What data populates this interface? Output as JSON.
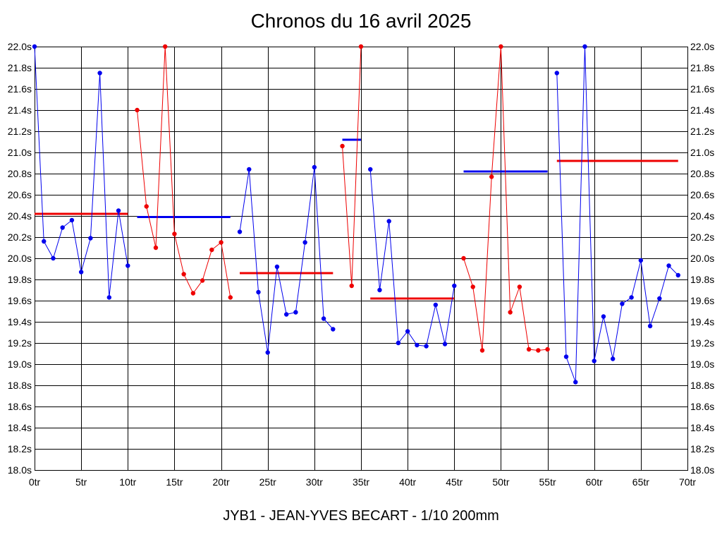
{
  "chart_data": {
    "type": "line",
    "title": "Chronos du 16 avril 2025",
    "subtitle": "JYB1 - JEAN-YVES BECART - 1/10 200mm",
    "xlim": [
      0,
      70
    ],
    "ylim": [
      18.0,
      22.0
    ],
    "x_ticks": [
      0,
      5,
      10,
      15,
      20,
      25,
      30,
      35,
      40,
      45,
      50,
      55,
      60,
      65,
      70
    ],
    "x_tick_labels": [
      "0tr",
      "5tr",
      "10tr",
      "15tr",
      "20tr",
      "25tr",
      "30tr",
      "35tr",
      "40tr",
      "45tr",
      "50tr",
      "55tr",
      "60tr",
      "65tr",
      "70tr"
    ],
    "y_ticks": [
      18.0,
      18.2,
      18.4,
      18.6,
      18.8,
      19.0,
      19.2,
      19.4,
      19.6,
      19.8,
      20.0,
      20.2,
      20.4,
      20.6,
      20.8,
      21.0,
      21.2,
      21.4,
      21.6,
      21.8,
      22.0
    ],
    "y_tick_labels": [
      "18.0s",
      "18.2s",
      "18.4s",
      "18.6s",
      "18.8s",
      "19.0s",
      "19.2s",
      "19.4s",
      "19.6s",
      "19.8s",
      "20.0s",
      "20.2s",
      "20.4s",
      "20.6s",
      "20.8s",
      "21.0s",
      "21.2s",
      "21.4s",
      "21.6s",
      "21.8s",
      "22.0s"
    ],
    "grid": true,
    "y_axis_labels_both_sides": true,
    "series": [
      {
        "color": "#0000ee",
        "x": [
          0,
          1,
          2,
          3,
          4,
          5,
          6,
          7,
          8,
          9,
          10
        ],
        "values": [
          22.0,
          20.16,
          20.0,
          20.29,
          20.36,
          19.87,
          20.19,
          21.75,
          19.63,
          20.45,
          19.93
        ]
      },
      {
        "color": "#ee0000",
        "x": [
          11,
          12,
          13,
          14,
          15,
          16,
          17,
          18,
          19,
          20,
          21
        ],
        "values": [
          21.4,
          20.49,
          20.1,
          22.0,
          20.23,
          19.85,
          19.67,
          19.79,
          20.08,
          20.15,
          19.63
        ]
      },
      {
        "color": "#0000ee",
        "x": [
          22,
          23,
          24,
          25,
          26,
          27,
          28,
          29,
          30,
          31,
          32
        ],
        "values": [
          20.25,
          20.84,
          19.68,
          19.11,
          19.92,
          19.47,
          19.49,
          20.15,
          20.86,
          19.43,
          19.33
        ]
      },
      {
        "color": "#ee0000",
        "x": [
          33,
          34,
          35
        ],
        "values": [
          21.06,
          19.74,
          22.0
        ]
      },
      {
        "color": "#0000ee",
        "x": [
          36,
          37,
          38,
          39,
          40,
          41,
          42,
          43,
          44,
          45
        ],
        "values": [
          20.84,
          19.7,
          20.35,
          19.2,
          19.31,
          19.18,
          19.17,
          19.56,
          19.19,
          19.74
        ]
      },
      {
        "color": "#ee0000",
        "x": [
          46,
          47,
          48,
          49,
          50,
          51,
          52,
          53,
          54,
          55
        ],
        "values": [
          20.0,
          19.73,
          19.13,
          20.77,
          22.0,
          19.49,
          19.73,
          19.14,
          19.13,
          19.14
        ]
      },
      {
        "color": "#0000ee",
        "x": [
          56,
          57,
          58,
          59,
          60,
          61,
          62,
          63,
          64,
          65,
          66,
          67,
          68,
          69
        ],
        "values": [
          21.75,
          19.07,
          18.83,
          22.0,
          19.03,
          19.45,
          19.05,
          19.57,
          19.63,
          19.98,
          19.36,
          19.62,
          19.93,
          19.84
        ]
      }
    ],
    "averages": [
      {
        "color": "#ee0000",
        "x_start": 0,
        "x_end": 10,
        "value": 20.42
      },
      {
        "color": "#0000ee",
        "x_start": 11,
        "x_end": 21,
        "value": 20.39
      },
      {
        "color": "#ee0000",
        "x_start": 22,
        "x_end": 32,
        "value": 19.86
      },
      {
        "color": "#0000ee",
        "x_start": 33,
        "x_end": 35,
        "value": 21.12
      },
      {
        "color": "#ee0000",
        "x_start": 36,
        "x_end": 45,
        "value": 19.62
      },
      {
        "color": "#0000ee",
        "x_start": 46,
        "x_end": 55,
        "value": 20.82
      },
      {
        "color": "#ee0000",
        "x_start": 56,
        "x_end": 69,
        "value": 20.92
      }
    ]
  }
}
